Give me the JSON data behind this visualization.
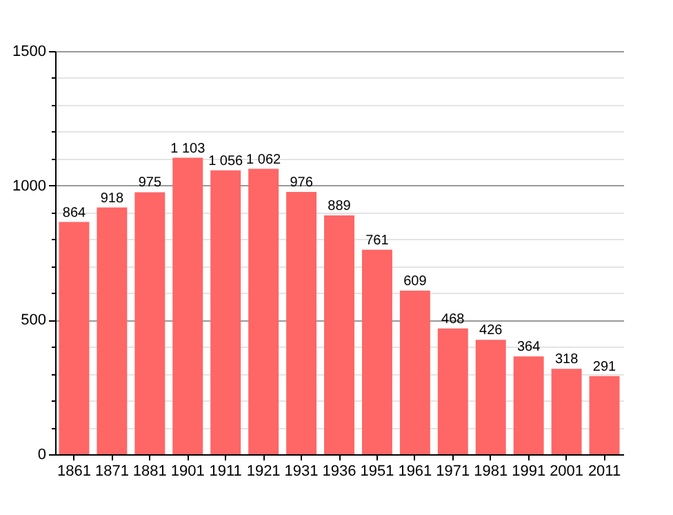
{
  "chart_data": {
    "type": "bar",
    "categories": [
      "1861",
      "1871",
      "1881",
      "1901",
      "1911",
      "1921",
      "1931",
      "1936",
      "1951",
      "1961",
      "1971",
      "1981",
      "1991",
      "2001",
      "2011"
    ],
    "values": [
      864,
      918,
      975,
      1103,
      1056,
      1062,
      976,
      889,
      761,
      609,
      468,
      426,
      364,
      318,
      291
    ],
    "value_labels": [
      "864",
      "918",
      "975",
      "1 103",
      "1 056",
      "1 062",
      "976",
      "889",
      "761",
      "609",
      "468",
      "426",
      "364",
      "318",
      "291"
    ],
    "color": "#ff6666",
    "ylim": [
      0,
      1500
    ],
    "yticks": [
      0,
      {
        "value": 100,
        "label": null
      },
      {
        "value": 200,
        "label": null
      },
      {
        "value": 300,
        "label": null
      },
      {
        "value": 400,
        "label": null
      },
      500,
      {
        "value": 600,
        "label": null
      },
      {
        "value": 700,
        "label": null
      },
      {
        "value": 800,
        "label": null
      },
      {
        "value": 900,
        "label": null
      },
      1000,
      {
        "value": 1100,
        "label": null
      },
      {
        "value": 1200,
        "label": null
      },
      {
        "value": 1300,
        "label": null
      },
      {
        "value": 1400,
        "label": null
      },
      1500
    ],
    "grid": "y"
  }
}
